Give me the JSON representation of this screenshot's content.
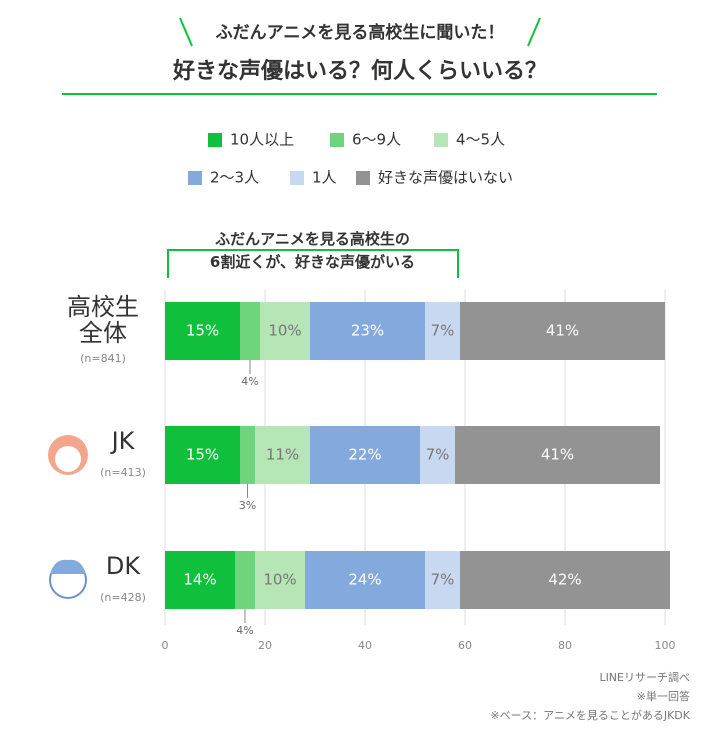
{
  "chart_data": {
    "type": "stacked_barh",
    "title": "ふだんアニメを見る高校生に聞いた！",
    "subtitle": "好きな声優はいる？何人くらいいる？",
    "annotation": "ふだんアニメを見る高校生の\n6割近くが、好きな声優がいる",
    "categories": [
      "高校生\n全体",
      "JK",
      "DK"
    ],
    "category_notes": [
      "(n=841)",
      "(n=413)",
      "(n=428)"
    ],
    "series": [
      {
        "name": "10人以上",
        "color": "#10bf3b",
        "values": [
          15,
          15,
          14
        ],
        "value_labels": [
          "15%",
          "15%",
          "14%"
        ]
      },
      {
        "name": "6〜9人",
        "color": "#6fd47b",
        "values": [
          4,
          3,
          4
        ],
        "value_labels": [
          "4%",
          "3%",
          "4%"
        ]
      },
      {
        "name": "4〜5人",
        "color": "#b6e5b6",
        "values": [
          10,
          11,
          10
        ],
        "value_labels": [
          "10%",
          "11%",
          "10%"
        ]
      },
      {
        "name": "2〜3人",
        "color": "#84a9dd",
        "values": [
          23,
          22,
          24
        ],
        "value_labels": [
          "23%",
          "22%",
          "24%"
        ]
      },
      {
        "name": "1人",
        "color": "#c9d8f1",
        "values": [
          7,
          7,
          7
        ],
        "value_labels": [
          "7%",
          "7%",
          "7%"
        ]
      },
      {
        "name": "好きな声優はいない",
        "color": "#939393",
        "values": [
          41,
          41,
          42
        ],
        "value_labels": [
          "41%",
          "41%",
          "42%"
        ]
      }
    ],
    "xlim": [
      0,
      100
    ],
    "xticks": [
      0,
      20,
      40,
      60,
      80,
      100
    ],
    "grid": true,
    "footnotes": [
      "LINEリサーチ調べ",
      "※単一回答",
      "※ベース：アニメを見ることがあるJKDK"
    ]
  }
}
